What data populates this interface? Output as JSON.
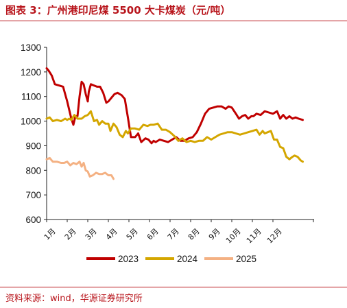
{
  "title": "图表 3：广州港印尼煤 5500 大卡煤炭（元/吨）",
  "source": "资料来源：wind，华源证券研究所",
  "chart_data": {
    "type": "line",
    "title": "广州港印尼煤 5500 大卡煤炭（元/吨）",
    "xlabel": "",
    "ylabel": "",
    "ylim": [
      600,
      1300
    ],
    "yticks": [
      600,
      700,
      800,
      900,
      1000,
      1100,
      1200,
      1300
    ],
    "xlim": [
      0,
      13
    ],
    "xticks": [
      {
        "label": "1月",
        "value": 0
      },
      {
        "label": "2月",
        "value": 1
      },
      {
        "label": "3月",
        "value": 2
      },
      {
        "label": "4月",
        "value": 3
      },
      {
        "label": "5月",
        "value": 4
      },
      {
        "label": "6月",
        "value": 5
      },
      {
        "label": "7月",
        "value": 6
      },
      {
        "label": "8月",
        "value": 7
      },
      {
        "label": "9月",
        "value": 8
      },
      {
        "label": "10月",
        "value": 9
      },
      {
        "label": "11月",
        "value": 10
      },
      {
        "label": "12月",
        "value": 11
      }
    ],
    "grid": false,
    "legend_position": "bottom",
    "series": [
      {
        "name": "2023",
        "color": "#c00000",
        "x": [
          0,
          0.1,
          0.25,
          0.4,
          0.6,
          0.8,
          1.0,
          1.2,
          1.3,
          1.4,
          1.5,
          1.6,
          1.7,
          1.8,
          1.9,
          2.0,
          2.05,
          2.15,
          2.3,
          2.45,
          2.6,
          2.75,
          2.9,
          3.0,
          3.15,
          3.3,
          3.45,
          3.55,
          3.65,
          3.8,
          3.95,
          4.1,
          4.3,
          4.45,
          4.6,
          4.8,
          4.95,
          5.1,
          5.2,
          5.3,
          5.5,
          5.7,
          5.9,
          6.1,
          6.3,
          6.5,
          6.7,
          6.9,
          7.1,
          7.3,
          7.5,
          7.7,
          7.9,
          8.1,
          8.3,
          8.5,
          8.7,
          8.85,
          9.0,
          9.2,
          9.35,
          9.5,
          9.65,
          9.8,
          9.95,
          10.05,
          10.2,
          10.4,
          10.6,
          10.8,
          11.0,
          11.2,
          11.35,
          11.5,
          11.65,
          11.8,
          11.95,
          12.1,
          12.25,
          12.45
        ],
        "values": [
          1215,
          1205,
          1185,
          1150,
          1145,
          1140,
          1080,
          1010,
          985,
          1020,
          1020,
          1100,
          1160,
          1150,
          1110,
          1080,
          1120,
          1150,
          1145,
          1140,
          1140,
          1115,
          1075,
          1080,
          1095,
          1110,
          1115,
          1110,
          1105,
          1090,
          1015,
          935,
          935,
          950,
          915,
          930,
          925,
          910,
          920,
          915,
          925,
          920,
          915,
          925,
          935,
          920,
          920,
          930,
          935,
          955,
          990,
          1030,
          1050,
          1055,
          1060,
          1060,
          1050,
          1060,
          1055,
          1030,
          1010,
          1020,
          1025,
          1010,
          1020,
          1020,
          1030,
          1025,
          1040,
          1035,
          1030,
          1040,
          1010,
          1025,
          1010,
          1020,
          1010,
          1015,
          1010,
          1005
        ]
      },
      {
        "name": "2024",
        "color": "#d4a600",
        "x": [
          0,
          0.15,
          0.3,
          0.5,
          0.7,
          0.9,
          1.0,
          1.1,
          1.2,
          1.35,
          1.5,
          1.7,
          1.85,
          2.0,
          2.15,
          2.3,
          2.45,
          2.55,
          2.7,
          2.85,
          3.0,
          3.1,
          3.25,
          3.4,
          3.55,
          3.7,
          3.85,
          3.95,
          4.1,
          4.3,
          4.5,
          4.7,
          4.9,
          5.05,
          5.2,
          5.4,
          5.6,
          5.8,
          6.0,
          6.2,
          6.4,
          6.6,
          6.8,
          7.0,
          7.2,
          7.4,
          7.6,
          7.8,
          8.0,
          8.2,
          8.4,
          8.6,
          8.8,
          9.0,
          9.2,
          9.4,
          9.6,
          9.8,
          10.0,
          10.2,
          10.35,
          10.5,
          10.6,
          10.75,
          10.9,
          11.05,
          11.2,
          11.35,
          11.5,
          11.65,
          11.8,
          11.95,
          12.05,
          12.2,
          12.35,
          12.45
        ],
        "values": [
          1010,
          1015,
          1000,
          1005,
          1000,
          1010,
          1005,
          1010,
          1005,
          1025,
          1010,
          1010,
          1020,
          1025,
          1040,
          1000,
          1005,
          985,
          1000,
          990,
          990,
          960,
          990,
          975,
          945,
          935,
          960,
          950,
          970,
          970,
          965,
          985,
          980,
          985,
          985,
          990,
          965,
          965,
          955,
          940,
          920,
          930,
          915,
          920,
          915,
          920,
          920,
          935,
          925,
          935,
          945,
          950,
          955,
          955,
          950,
          945,
          950,
          955,
          960,
          965,
          945,
          960,
          950,
          955,
          960,
          925,
          925,
          895,
          890,
          855,
          845,
          855,
          860,
          855,
          840,
          835
        ]
      },
      {
        "name": "2025",
        "color": "#f4b183",
        "x": [
          0,
          0.15,
          0.3,
          0.5,
          0.7,
          0.85,
          1.0,
          1.15,
          1.3,
          1.45,
          1.6,
          1.7,
          1.8,
          1.9,
          2.0,
          2.1,
          2.25,
          2.4,
          2.55,
          2.7,
          2.85,
          3.0,
          3.15,
          3.25
        ],
        "values": [
          845,
          850,
          835,
          835,
          830,
          830,
          835,
          820,
          830,
          825,
          835,
          815,
          830,
          800,
          795,
          775,
          780,
          790,
          785,
          785,
          790,
          780,
          780,
          765
        ]
      }
    ]
  }
}
